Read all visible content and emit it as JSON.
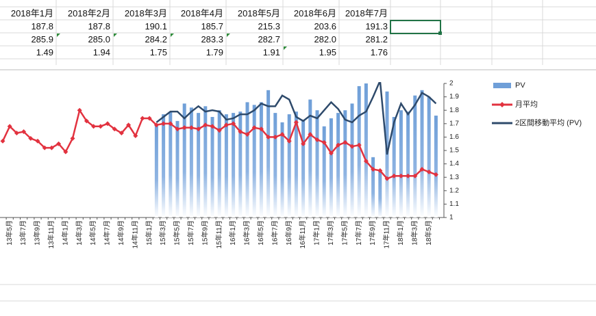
{
  "sheet": {
    "headers": [
      "2018年1月",
      "2018年2月",
      "2018年3月",
      "2018年4月",
      "2018年5月",
      "2018年6月",
      "2018年7月"
    ],
    "rows": [
      [
        "187.8",
        "187.8",
        "190.1",
        "185.7",
        "215.3",
        "203.6",
        "191.3"
      ],
      [
        "285.9",
        "285.0",
        "284.2",
        "283.3",
        "282.7",
        "282.0",
        "281.2"
      ],
      [
        "1.49",
        "1.94",
        "1.75",
        "1.79",
        "1.91",
        "1.95",
        "1.76"
      ]
    ]
  },
  "chart_data": {
    "type": "combo",
    "categories": [
      null,
      "13年5月",
      null,
      "13年7月",
      null,
      "13年9月",
      null,
      "13年11月",
      null,
      "14年1月",
      null,
      "14年3月",
      null,
      "14年5月",
      null,
      "14年7月",
      null,
      "14年9月",
      null,
      "14年11月",
      null,
      "15年1月",
      null,
      "15年3月",
      null,
      "15年5月",
      null,
      "15年7月",
      null,
      "15年9月",
      null,
      "15年11月",
      null,
      "16年1月",
      null,
      "16年3月",
      null,
      "16年5月",
      null,
      "16年7月",
      null,
      "16年9月",
      null,
      "16年11月",
      null,
      "17年1月",
      null,
      "17年3月",
      null,
      "17年5月",
      null,
      "17年7月",
      null,
      "17年9月",
      null,
      "17年11月",
      null,
      "18年1月",
      null,
      "18年3月",
      null,
      "18年5月",
      null
    ],
    "series": [
      {
        "name": "PV",
        "type": "bar",
        "color": "#6f9fd8",
        "values": [
          null,
          null,
          null,
          null,
          null,
          null,
          null,
          null,
          null,
          null,
          null,
          null,
          null,
          null,
          null,
          null,
          null,
          null,
          null,
          null,
          null,
          null,
          1.7,
          1.77,
          1.79,
          1.72,
          1.85,
          1.82,
          1.78,
          1.83,
          1.75,
          1.8,
          1.77,
          1.78,
          1.79,
          1.86,
          1.84,
          1.86,
          1.95,
          1.78,
          1.71,
          1.77,
          1.79,
          1.73,
          1.88,
          1.8,
          1.68,
          1.74,
          1.78,
          1.8,
          1.85,
          1.98,
          2.0,
          1.45,
          1.35,
          1.94,
          1.75,
          1.8,
          1.79,
          1.91,
          1.95,
          1.9,
          1.76
        ]
      },
      {
        "name": "月平均",
        "type": "line",
        "marker": "diamond",
        "color": "#e2323f",
        "values": [
          1.57,
          1.68,
          1.63,
          1.64,
          1.59,
          1.57,
          1.52,
          1.52,
          1.55,
          1.49,
          1.59,
          1.8,
          1.72,
          1.68,
          1.68,
          1.7,
          1.66,
          1.63,
          1.69,
          1.61,
          1.74,
          1.74,
          1.69,
          1.7,
          1.7,
          1.66,
          1.67,
          1.67,
          1.66,
          1.69,
          1.68,
          1.65,
          1.69,
          1.7,
          1.64,
          1.62,
          1.67,
          1.66,
          1.6,
          1.6,
          1.62,
          1.57,
          1.71,
          1.55,
          1.62,
          1.58,
          1.56,
          1.48,
          1.54,
          1.56,
          1.53,
          1.54,
          1.42,
          1.36,
          1.35,
          1.29,
          1.31,
          1.31,
          1.31,
          1.31,
          1.36,
          1.34,
          1.32
        ]
      },
      {
        "name": "2区間移動平均 (PV)",
        "type": "line",
        "color": "#2e4a6b",
        "values": [
          null,
          null,
          null,
          null,
          null,
          null,
          null,
          null,
          null,
          null,
          null,
          null,
          null,
          null,
          null,
          null,
          null,
          null,
          null,
          null,
          null,
          null,
          1.71,
          1.75,
          1.79,
          1.79,
          1.74,
          1.79,
          1.83,
          1.79,
          1.8,
          1.79,
          1.73,
          1.74,
          1.77,
          1.77,
          1.8,
          1.85,
          1.83,
          1.83,
          1.91,
          1.88,
          1.75,
          1.72,
          1.76,
          1.74,
          1.8,
          1.86,
          1.81,
          1.73,
          1.71,
          1.76,
          1.79,
          1.9,
          2.02,
          1.47,
          1.71,
          1.85,
          1.77,
          1.84,
          1.93,
          1.9,
          1.85
        ]
      }
    ],
    "ylim": [
      1,
      2
    ],
    "yticks": [
      1,
      1.1,
      1.2,
      1.3,
      1.4,
      1.5,
      1.6,
      1.7,
      1.8,
      1.9,
      2
    ]
  }
}
